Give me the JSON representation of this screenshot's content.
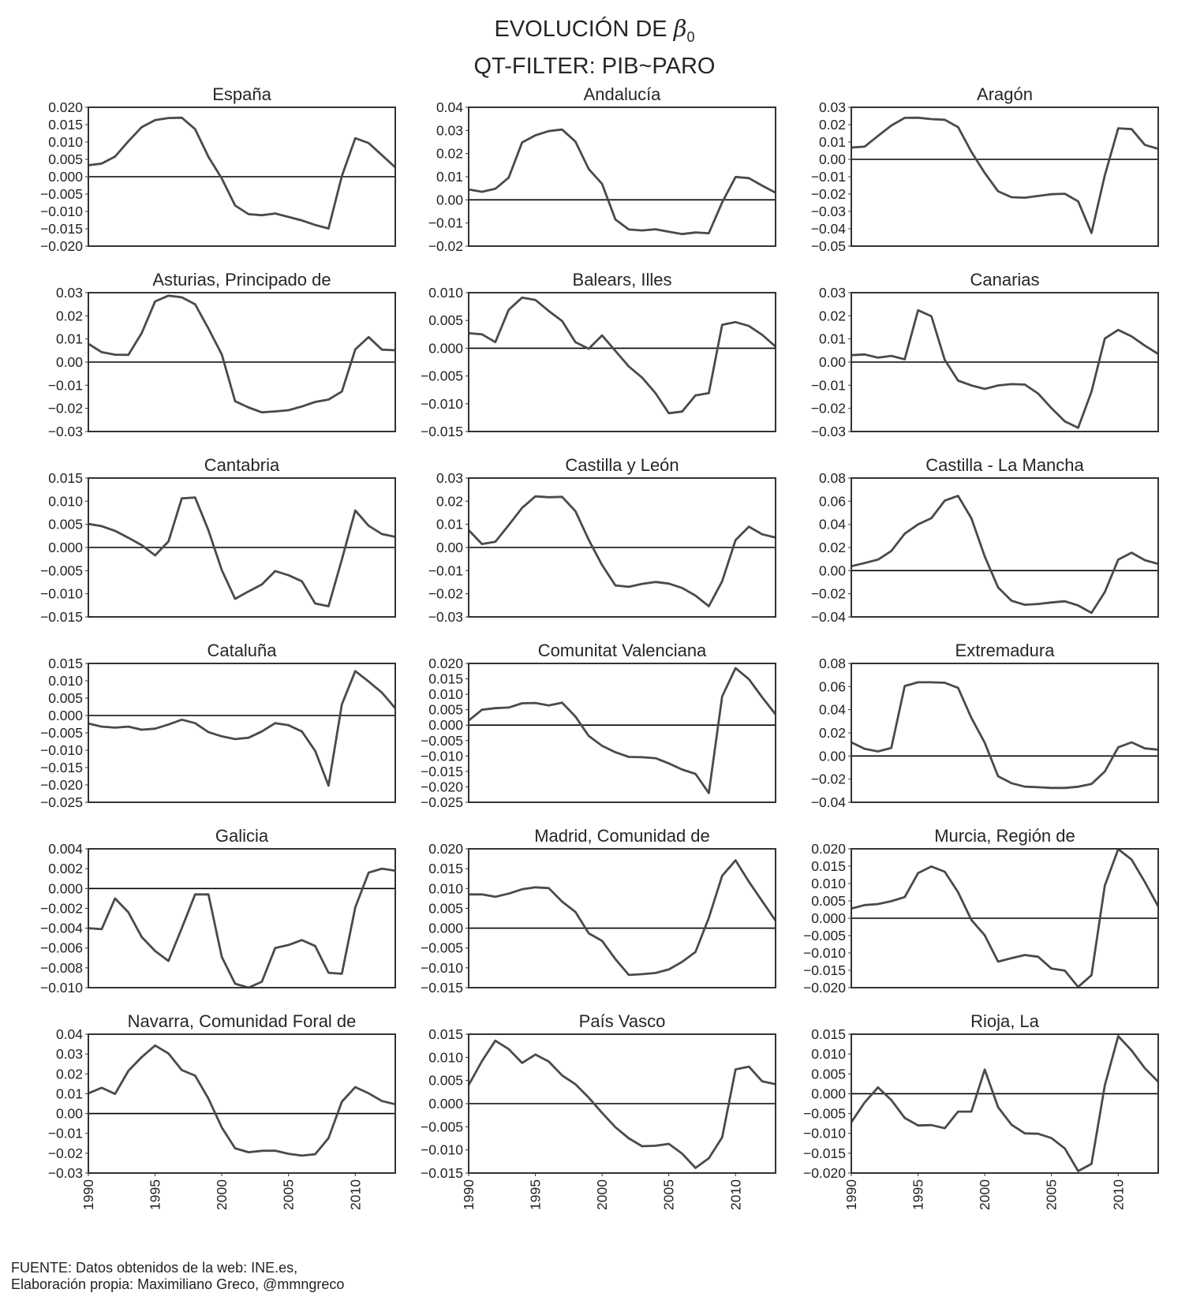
{
  "figure": {
    "title_line1": "EVOLUCIÓN DE",
    "title_symbol": "β",
    "title_subscript": "0",
    "title_line2": "QT-FILTER: PIB~PARO",
    "source_line1": "FUENTE: Datos obtenidos de la web: INE.es,",
    "source_line2": "Elaboración propia: Maximiliano Greco, @mmngreco"
  },
  "colors": {
    "line": "#4a4a4a",
    "zero_line": "#000000",
    "axes": "#333333"
  },
  "chart_data": [
    {
      "type": "line",
      "title": "España",
      "ylim": [
        -0.02,
        0.02
      ],
      "xlim": [
        1990,
        2013
      ],
      "yticks": [
        "0.020",
        "0.015",
        "0.010",
        "0.005",
        "0.000",
        "-0.005",
        "-0.010",
        "-0.015",
        "-0.020"
      ],
      "y": [
        0.0033,
        0.0038,
        0.0058,
        0.0102,
        0.0143,
        0.0163,
        0.0169,
        0.017,
        0.0137,
        0.0057,
        -0.0005,
        -0.0083,
        -0.0108,
        -0.0111,
        -0.0106,
        -0.0116,
        -0.0126,
        -0.0139,
        -0.0149,
        0.0002,
        0.0111,
        0.0097,
        0.0062,
        0.0027
      ]
    },
    {
      "type": "line",
      "title": "Andalucía",
      "ylim": [
        -0.02,
        0.04
      ],
      "xlim": [
        1990,
        2013
      ],
      "yticks": [
        "0.04",
        "0.03",
        "0.02",
        "0.01",
        "0.00",
        "-0.01",
        "-0.02"
      ],
      "y": [
        0.0045,
        0.0035,
        0.0048,
        0.0096,
        0.0248,
        0.0279,
        0.0297,
        0.0304,
        0.0252,
        0.0133,
        0.0069,
        -0.0085,
        -0.0128,
        -0.0132,
        -0.0127,
        -0.0138,
        -0.0148,
        -0.0141,
        -0.0144,
        -0.0011,
        0.0099,
        0.0094,
        0.0061,
        0.0031
      ]
    },
    {
      "type": "line",
      "title": "Aragón",
      "ylim": [
        -0.05,
        0.03
      ],
      "xlim": [
        1990,
        2013
      ],
      "yticks": [
        "0.03",
        "0.02",
        "0.01",
        "0.00",
        "-0.01",
        "-0.02",
        "-0.03",
        "-0.04",
        "-0.05"
      ],
      "y": [
        0.0068,
        0.0073,
        0.0135,
        0.0195,
        0.0239,
        0.024,
        0.0232,
        0.0228,
        0.0186,
        0.0043,
        -0.0078,
        -0.0184,
        -0.0218,
        -0.0221,
        -0.0211,
        -0.0201,
        -0.0198,
        -0.0242,
        -0.0424,
        -0.0092,
        0.0179,
        0.0174,
        0.0083,
        0.0061
      ]
    },
    {
      "type": "line",
      "title": "Asturias, Principado de",
      "ylim": [
        -0.03,
        0.03
      ],
      "xlim": [
        1990,
        2013
      ],
      "yticks": [
        "0.03",
        "0.02",
        "0.01",
        "0.00",
        "-0.01",
        "-0.02",
        "-0.03"
      ],
      "y": [
        0.0079,
        0.0043,
        0.0032,
        0.0031,
        0.0126,
        0.0262,
        0.0287,
        0.028,
        0.025,
        0.0145,
        0.0033,
        -0.0169,
        -0.0196,
        -0.0217,
        -0.0213,
        -0.0208,
        -0.0192,
        -0.0172,
        -0.0162,
        -0.0127,
        0.0055,
        0.0108,
        0.0054,
        0.0051
      ]
    },
    {
      "type": "line",
      "title": "Balears, Illes",
      "ylim": [
        -0.015,
        0.01
      ],
      "xlim": [
        1990,
        2013
      ],
      "yticks": [
        "0.010",
        "0.005",
        "0.000",
        "-0.005",
        "-0.010",
        "-0.015"
      ],
      "y": [
        0.0027,
        0.0025,
        0.0011,
        0.0069,
        0.0091,
        0.0087,
        0.0067,
        0.0049,
        0.0011,
        -0.0001,
        0.0023,
        -0.0005,
        -0.0033,
        -0.0053,
        -0.0081,
        -0.0117,
        -0.0114,
        -0.0085,
        -0.0081,
        0.0042,
        0.0047,
        0.004,
        0.0024,
        0.0003
      ]
    },
    {
      "type": "line",
      "title": "Canarias",
      "ylim": [
        -0.03,
        0.03
      ],
      "xlim": [
        1990,
        2013
      ],
      "yticks": [
        "0.03",
        "0.02",
        "0.01",
        "0.00",
        "-0.01",
        "-0.02",
        "-0.03"
      ],
      "y": [
        0.003,
        0.0033,
        0.0019,
        0.0027,
        0.0012,
        0.0224,
        0.0198,
        0.001,
        -0.008,
        -0.0101,
        -0.0116,
        -0.0101,
        -0.0095,
        -0.0097,
        -0.0136,
        -0.0199,
        -0.0256,
        -0.0284,
        -0.0128,
        0.0102,
        0.0139,
        0.0111,
        0.0071,
        0.0035
      ]
    },
    {
      "type": "line",
      "title": "Cantabria",
      "ylim": [
        -0.015,
        0.015
      ],
      "xlim": [
        1990,
        2013
      ],
      "yticks": [
        "0.015",
        "0.010",
        "0.005",
        "0.000",
        "-0.005",
        "-0.010",
        "-0.015"
      ],
      "y": [
        0.0051,
        0.0046,
        0.0036,
        0.0021,
        0.0005,
        -0.0017,
        0.0013,
        0.0106,
        0.0108,
        0.0037,
        -0.0049,
        -0.0111,
        -0.0095,
        -0.008,
        -0.0051,
        -0.006,
        -0.0073,
        -0.0121,
        -0.0127,
        -0.0026,
        0.008,
        0.0047,
        0.0029,
        0.0023
      ]
    },
    {
      "type": "line",
      "title": "Castilla y León",
      "ylim": [
        -0.03,
        0.03
      ],
      "xlim": [
        1990,
        2013
      ],
      "yticks": [
        "0.03",
        "0.02",
        "0.01",
        "0.00",
        "-0.01",
        "-0.02",
        "-0.03"
      ],
      "y": [
        0.0075,
        0.0015,
        0.0025,
        0.0096,
        0.0171,
        0.0221,
        0.0217,
        0.0219,
        0.0157,
        0.0033,
        -0.0076,
        -0.0164,
        -0.017,
        -0.0157,
        -0.0149,
        -0.0156,
        -0.0175,
        -0.0208,
        -0.0254,
        -0.0146,
        0.0032,
        0.009,
        0.0057,
        0.0043
      ]
    },
    {
      "type": "line",
      "title": "Castilla - La Mancha",
      "ylim": [
        -0.04,
        0.08
      ],
      "xlim": [
        1990,
        2013
      ],
      "yticks": [
        "0.08",
        "0.06",
        "0.04",
        "0.02",
        "0.00",
        "-0.02",
        "-0.04"
      ],
      "y": [
        0.0038,
        0.0066,
        0.0095,
        0.017,
        0.0319,
        0.04,
        0.0453,
        0.0605,
        0.0646,
        0.0452,
        0.0123,
        -0.0145,
        -0.026,
        -0.0295,
        -0.0288,
        -0.0275,
        -0.0265,
        -0.0301,
        -0.0365,
        -0.0185,
        0.0095,
        0.0155,
        0.009,
        0.0058
      ]
    },
    {
      "type": "line",
      "title": "Cataluña",
      "ylim": [
        -0.025,
        0.015
      ],
      "xlim": [
        1990,
        2013
      ],
      "yticks": [
        "0.015",
        "0.010",
        "0.005",
        "0.000",
        "-0.005",
        "-0.010",
        "-0.015",
        "-0.020",
        "-0.025"
      ],
      "y": [
        -0.0023,
        -0.0032,
        -0.0035,
        -0.0032,
        -0.0041,
        -0.0038,
        -0.0026,
        -0.0012,
        -0.0022,
        -0.0048,
        -0.006,
        -0.0068,
        -0.0064,
        -0.0046,
        -0.0022,
        -0.0028,
        -0.0046,
        -0.0102,
        -0.0202,
        0.0032,
        0.0128,
        0.0098,
        0.0066,
        0.0021
      ]
    },
    {
      "type": "line",
      "title": "Comunitat Valenciana",
      "ylim": [
        -0.025,
        0.02
      ],
      "xlim": [
        1990,
        2013
      ],
      "yticks": [
        "0.020",
        "0.015",
        "0.010",
        "0.005",
        "0.000",
        "-0.005",
        "-0.010",
        "-0.015",
        "-0.020",
        "-0.025"
      ],
      "y": [
        0.0015,
        0.005,
        0.0055,
        0.0057,
        0.0071,
        0.0072,
        0.0064,
        0.0073,
        0.0028,
        -0.0035,
        -0.0067,
        -0.0088,
        -0.0103,
        -0.0104,
        -0.0107,
        -0.0124,
        -0.0144,
        -0.0158,
        -0.022,
        0.0093,
        0.0185,
        0.0149,
        0.009,
        0.0035
      ]
    },
    {
      "type": "line",
      "title": "Extremadura",
      "ylim": [
        -0.04,
        0.08
      ],
      "xlim": [
        1990,
        2013
      ],
      "yticks": [
        "0.08",
        "0.06",
        "0.04",
        "0.02",
        "0.00",
        "-0.02",
        "-0.04"
      ],
      "y": [
        0.0118,
        0.0062,
        0.004,
        0.007,
        0.0605,
        0.0637,
        0.0637,
        0.0633,
        0.0589,
        0.0329,
        0.0115,
        -0.0175,
        -0.0235,
        -0.0265,
        -0.027,
        -0.0276,
        -0.0276,
        -0.0266,
        -0.0242,
        -0.0134,
        0.0075,
        0.0118,
        0.0066,
        0.0055
      ]
    },
    {
      "type": "line",
      "title": "Galicia",
      "ylim": [
        -0.01,
        0.004
      ],
      "xlim": [
        1990,
        2013
      ],
      "yticks": [
        "0.004",
        "0.002",
        "0.000",
        "-0.002",
        "-0.004",
        "-0.006",
        "-0.008",
        "-0.010"
      ],
      "y": [
        -0.004,
        -0.0041,
        -0.001,
        -0.0024,
        -0.0049,
        -0.0063,
        -0.0073,
        -0.004,
        -0.0006,
        -0.0006,
        -0.0069,
        -0.0096,
        -0.01,
        -0.0094,
        -0.006,
        -0.0057,
        -0.0052,
        -0.0058,
        -0.0085,
        -0.0086,
        -0.0019,
        0.0016,
        0.002,
        0.0018
      ]
    },
    {
      "type": "line",
      "title": "Madrid, Comunidad de",
      "ylim": [
        -0.015,
        0.02
      ],
      "xlim": [
        1990,
        2013
      ],
      "yticks": [
        "0.020",
        "0.015",
        "0.010",
        "0.005",
        "0.000",
        "-0.005",
        "-0.010",
        "-0.015"
      ],
      "y": [
        0.0085,
        0.0085,
        0.0079,
        0.0087,
        0.0098,
        0.0103,
        0.0101,
        0.0067,
        0.0041,
        -0.0013,
        -0.0032,
        -0.0078,
        -0.0118,
        -0.0116,
        -0.0113,
        -0.0104,
        -0.0085,
        -0.006,
        0.0026,
        0.0132,
        0.0171,
        0.0117,
        0.0068,
        0.0019
      ]
    },
    {
      "type": "line",
      "title": "Murcia, Región de",
      "ylim": [
        -0.02,
        0.02
      ],
      "xlim": [
        1990,
        2013
      ],
      "yticks": [
        "0.020",
        "0.015",
        "0.010",
        "0.005",
        "0.000",
        "-0.005",
        "-0.010",
        "-0.015",
        "-0.020"
      ],
      "y": [
        0.0028,
        0.0038,
        0.0041,
        0.0049,
        0.0061,
        0.013,
        0.0149,
        0.0134,
        0.0075,
        -0.0005,
        -0.0049,
        -0.0125,
        -0.0115,
        -0.0106,
        -0.0111,
        -0.0145,
        -0.0151,
        -0.0198,
        -0.0164,
        0.0094,
        0.0199,
        0.0169,
        0.0104,
        0.0034
      ]
    },
    {
      "type": "line",
      "title": "Navarra, Comunidad Foral de",
      "ylim": [
        -0.03,
        0.04
      ],
      "xlim": [
        1990,
        2013
      ],
      "yticks": [
        "0.04",
        "0.03",
        "0.02",
        "0.01",
        "0.00",
        "-0.01",
        "-0.02",
        "-0.03"
      ],
      "y": [
        0.0102,
        0.013,
        0.0099,
        0.0215,
        0.0285,
        0.0343,
        0.0303,
        0.0219,
        0.0191,
        0.0075,
        -0.007,
        -0.0175,
        -0.0195,
        -0.0188,
        -0.0187,
        -0.0203,
        -0.0212,
        -0.0205,
        -0.0124,
        0.006,
        0.0133,
        0.0102,
        0.0063,
        0.0047
      ]
    },
    {
      "type": "line",
      "title": "País Vasco",
      "ylim": [
        -0.015,
        0.015
      ],
      "xlim": [
        1990,
        2013
      ],
      "yticks": [
        "0.015",
        "0.010",
        "0.005",
        "0.000",
        "-0.005",
        "-0.010",
        "-0.015"
      ],
      "y": [
        0.004,
        0.0092,
        0.0136,
        0.0118,
        0.0088,
        0.0106,
        0.0091,
        0.0061,
        0.0042,
        0.0013,
        -0.002,
        -0.0051,
        -0.0075,
        -0.0092,
        -0.0091,
        -0.0087,
        -0.0108,
        -0.0139,
        -0.0118,
        -0.0073,
        0.0074,
        0.008,
        0.0048,
        0.0042
      ]
    },
    {
      "type": "line",
      "title": "Rioja, La",
      "ylim": [
        -0.02,
        0.015
      ],
      "xlim": [
        1990,
        2013
      ],
      "yticks": [
        "0.015",
        "0.010",
        "0.005",
        "0.000",
        "-0.005",
        "-0.010",
        "-0.015",
        "-0.020"
      ],
      "y": [
        -0.0072,
        -0.0022,
        0.0016,
        -0.0016,
        -0.0061,
        -0.008,
        -0.0079,
        -0.0087,
        -0.0045,
        -0.0045,
        0.0061,
        -0.0034,
        -0.0078,
        -0.01,
        -0.0101,
        -0.0112,
        -0.0138,
        -0.0195,
        -0.0177,
        0.0021,
        0.0145,
        0.0109,
        0.0064,
        0.003
      ]
    }
  ],
  "x_axis": {
    "start_year": 1990,
    "ticks": [
      "1990",
      "1995",
      "2000",
      "2005",
      "2010"
    ]
  }
}
